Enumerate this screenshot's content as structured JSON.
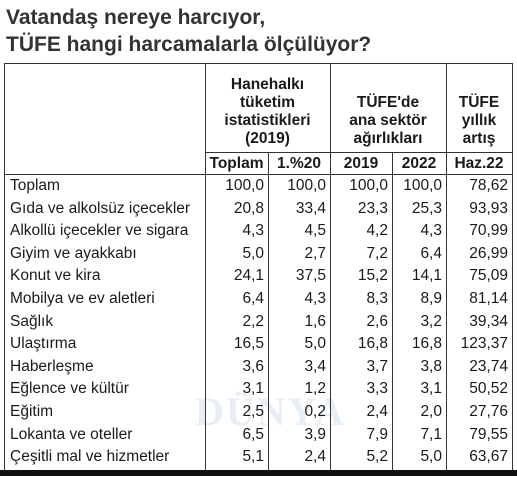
{
  "title": [
    "Vatandaş nereye harcıyor,",
    "TÜFE hangi harcamalarla ölçülüyor?"
  ],
  "watermark": "DÜNYA",
  "table": {
    "groups": [
      {
        "lines": [
          "Hanehalkı",
          "tüketim",
          "istatistikleri",
          "(2019)"
        ],
        "span": 2
      },
      {
        "lines": [
          "TÜFE'de",
          "ana sektör",
          "ağırlıkları"
        ],
        "span": 2
      },
      {
        "lines": [
          "TÜFE",
          "yıllık",
          "artış"
        ],
        "span": 1
      }
    ],
    "columns": [
      "Toplam",
      "1.%20",
      "2019",
      "2022",
      "Haz.22"
    ],
    "rows": [
      [
        "Toplam",
        "100,0",
        "100,0",
        "100,0",
        "100,0",
        "78,62"
      ],
      [
        "Gıda ve alkolsüz içecekler",
        "20,8",
        "33,4",
        "23,3",
        "25,3",
        "93,93"
      ],
      [
        "Alkollü içecekler ve sigara",
        "4,3",
        "4,5",
        "4,2",
        "4,3",
        "70,99"
      ],
      [
        "Giyim ve ayakkabı",
        "5,0",
        "2,7",
        "7,2",
        "6,4",
        "26,99"
      ],
      [
        "Konut ve kira",
        "24,1",
        "37,5",
        "15,2",
        "14,1",
        "75,09"
      ],
      [
        "Mobilya ve ev aletleri",
        "6,4",
        "4,3",
        "8,3",
        "8,9",
        "81,14"
      ],
      [
        "Sağlık",
        "2,2",
        "1,6",
        "2,6",
        "3,2",
        "39,34"
      ],
      [
        "Ulaştırma",
        "16,5",
        "5,0",
        "16,8",
        "16,8",
        "123,37"
      ],
      [
        "Haberleşme",
        "3,6",
        "3,4",
        "3,7",
        "3,8",
        "23,74"
      ],
      [
        "Eğlence ve kültür",
        "3,1",
        "1,2",
        "3,3",
        "3,1",
        "50,52"
      ],
      [
        "Eğitim",
        "2,5",
        "0,2",
        "2,4",
        "2,0",
        "27,76"
      ],
      [
        "Lokanta ve oteller",
        "6,5",
        "3,9",
        "7,9",
        "7,1",
        "79,55"
      ],
      [
        "Çeşitli mal ve hizmetler",
        "5,1",
        "2,4",
        "5,2",
        "5,0",
        "63,67"
      ]
    ]
  }
}
